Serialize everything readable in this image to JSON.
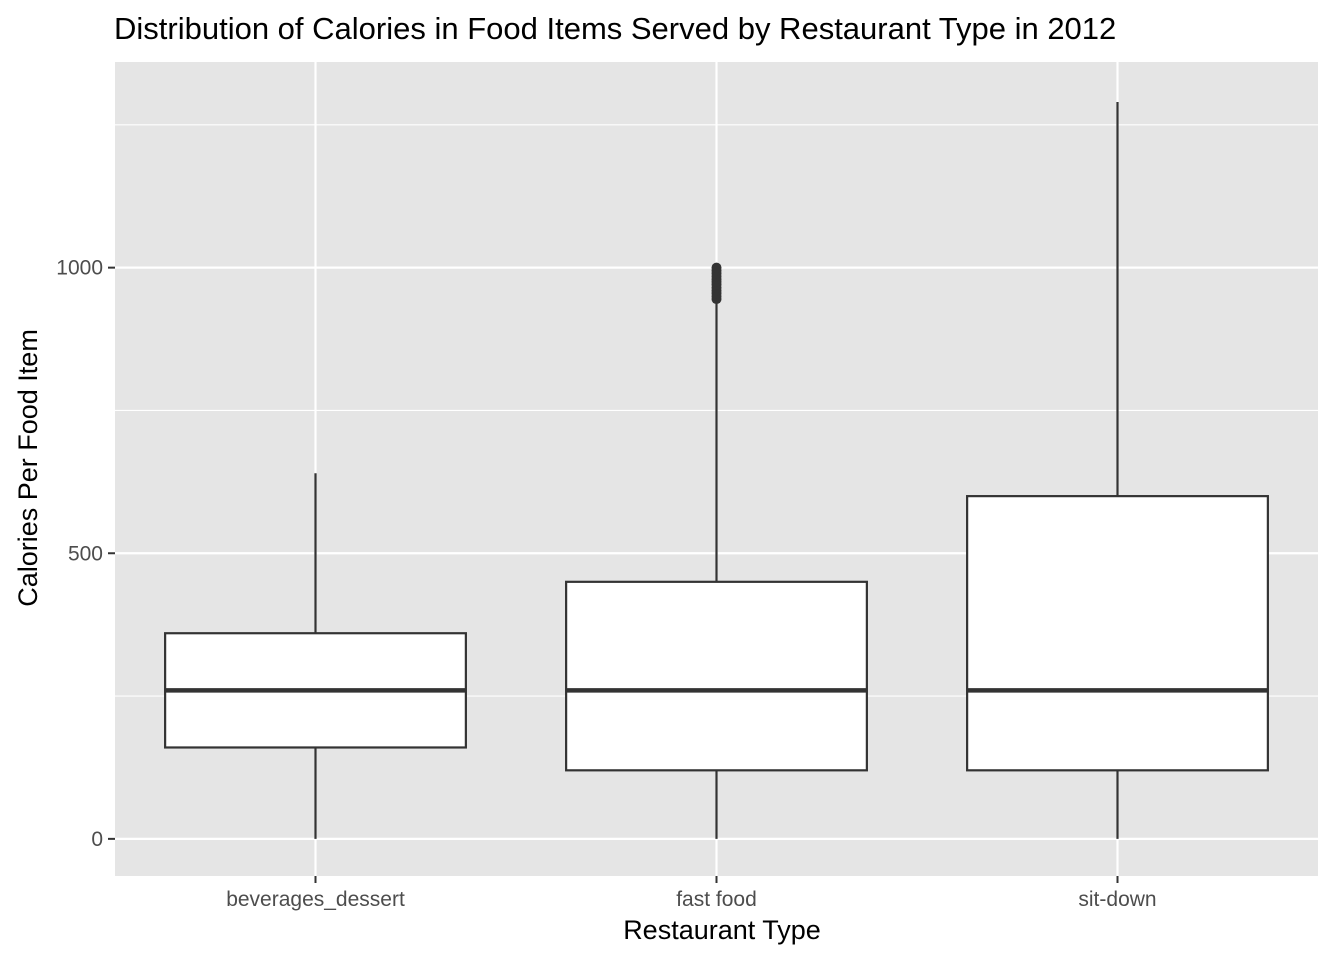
{
  "chart_data": {
    "type": "boxplot",
    "title": "Distribution of Calories in Food Items Served by Restaurant Type in 2012",
    "xlabel": "Restaurant Type",
    "ylabel": "Calories Per Food Item",
    "categories": [
      "beverages_dessert",
      "fast food",
      "sit-down"
    ],
    "boxes": [
      {
        "category": "beverages_dessert",
        "whisker_low": 0,
        "q1": 160,
        "median": 260,
        "q3": 360,
        "whisker_high": 640,
        "outliers": []
      },
      {
        "category": "fast food",
        "whisker_low": 0,
        "q1": 120,
        "median": 260,
        "q3": 450,
        "whisker_high": 940,
        "outliers": [
          945,
          950,
          955,
          960,
          965,
          970,
          975,
          980,
          985,
          990,
          995,
          1000
        ]
      },
      {
        "category": "sit-down",
        "whisker_low": 0,
        "q1": 120,
        "median": 260,
        "q3": 600,
        "whisker_high": 1290,
        "outliers": []
      }
    ],
    "y_ticks": [
      0,
      500,
      1000
    ],
    "ylim": [
      -65,
      1360
    ],
    "grid": true,
    "legend": "none",
    "colors": {
      "panel_background": "#e5e5e5",
      "grid": "#ffffff",
      "box_fill": "#ffffff",
      "box_stroke": "#333333",
      "tick_text": "#4d4d4d"
    }
  }
}
